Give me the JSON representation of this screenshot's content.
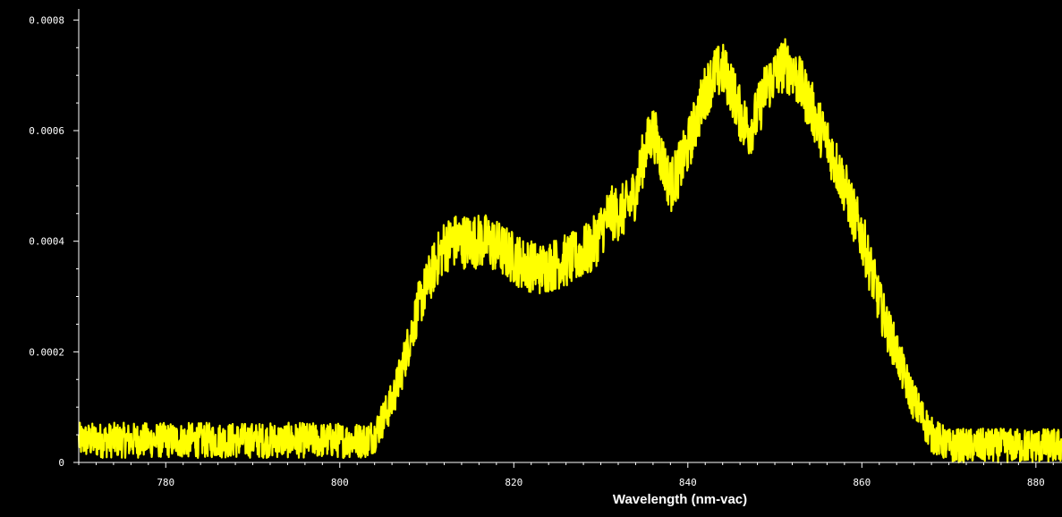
{
  "chart_data": {
    "type": "line",
    "title": "",
    "xlabel": "Wavelength (nm-vac)",
    "ylabel": "",
    "xlim": [
      770,
      883
    ],
    "ylim": [
      0,
      0.00082
    ],
    "x_ticks": [
      780,
      800,
      820,
      840,
      860,
      880
    ],
    "x_tick_labels": [
      "780",
      "800",
      "820",
      "840",
      "860",
      "880"
    ],
    "y_ticks": [
      0,
      0.0002,
      0.0004,
      0.0006,
      0.0008
    ],
    "y_tick_labels": [
      "0",
      "0.0002",
      "0.0004",
      "0.0006",
      "0.0008"
    ],
    "grid": false,
    "legend": "none",
    "background_color": "#000000",
    "axis_color": "#ffffff",
    "series": [
      {
        "color": "#ffff00",
        "x": [
          770,
          775,
          780,
          785,
          790,
          795,
          800,
          802,
          803,
          804,
          805,
          806,
          807,
          808,
          809,
          810,
          811,
          812,
          813,
          815,
          817,
          819,
          821,
          823,
          825,
          827,
          829,
          830,
          831,
          832,
          833,
          834,
          835,
          836,
          837,
          838,
          839,
          840,
          841,
          842,
          843,
          844,
          845,
          846,
          847,
          848,
          849,
          850,
          851,
          852,
          853,
          854,
          855,
          856,
          857,
          858,
          859,
          860,
          861,
          862,
          863,
          864,
          865,
          866,
          867,
          868,
          869,
          870,
          871,
          872,
          875,
          880,
          883
        ],
        "values": [
          4e-05,
          4e-05,
          4e-05,
          4e-05,
          4e-05,
          4e-05,
          4e-05,
          4e-05,
          4e-05,
          5e-05,
          8e-05,
          0.00011,
          0.00016,
          0.00022,
          0.00028,
          0.00032,
          0.00036,
          0.00039,
          0.0004,
          0.0004,
          0.0004,
          0.00038,
          0.00036,
          0.00035,
          0.00036,
          0.00037,
          0.00039,
          0.00042,
          0.00045,
          0.00045,
          0.00046,
          0.00049,
          0.00056,
          0.0006,
          0.00055,
          0.0005,
          0.00053,
          0.00057,
          0.00062,
          0.00067,
          0.0007,
          0.00071,
          0.00068,
          0.00063,
          0.0006,
          0.00063,
          0.00068,
          0.0007,
          0.00072,
          0.00071,
          0.00068,
          0.00065,
          0.00061,
          0.00058,
          0.00054,
          0.0005,
          0.00045,
          0.00041,
          0.00035,
          0.00029,
          0.00024,
          0.0002,
          0.00015,
          0.00011,
          8e-05,
          5e-05,
          4e-05,
          3e-05,
          3e-05,
          3e-05,
          3e-05,
          3e-05,
          3e-05
        ],
        "noise_amplitude": 5e-05
      }
    ]
  }
}
